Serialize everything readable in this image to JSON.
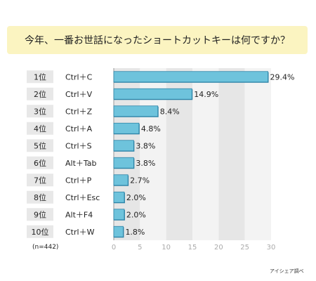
{
  "title": "今年、一番お世話になったショートカットキーは何ですか？",
  "sample_note": "(n=442)",
  "source": "アイシェア調べ",
  "colors": {
    "bar_fill": "#6ec3dc",
    "bar_edge": "#2e84a8",
    "rank_bg": "#e8e8e8",
    "band_dark": "#e6e6e6",
    "band_light": "#f3f3f3",
    "title_bg": "#fbf4c1"
  },
  "chart_data": {
    "type": "bar",
    "orientation": "horizontal",
    "ranks": [
      "1位",
      "2位",
      "3位",
      "4位",
      "5位",
      "6位",
      "7位",
      "8位",
      "9位",
      "10位"
    ],
    "categories": [
      "Ctrl＋C",
      "Ctrl＋V",
      "Ctrl＋Z",
      "Ctrl＋A",
      "Ctrl＋S",
      "Alt＋Tab",
      "Ctrl＋P",
      "Ctrl＋Esc",
      "Alt＋F4",
      "Ctrl＋W"
    ],
    "values": [
      29.4,
      14.9,
      8.4,
      4.8,
      3.8,
      3.8,
      2.7,
      2.0,
      2.0,
      1.8
    ],
    "value_labels": [
      "29.4%",
      "14.9%",
      "8.4%",
      "4.8%",
      "3.8%",
      "3.8%",
      "2.7%",
      "2.0%",
      "2.0%",
      "1.8%"
    ],
    "xlim": [
      0,
      30
    ],
    "xticks": [
      "0",
      "5",
      "10",
      "15",
      "20",
      "25",
      "30"
    ],
    "grid": "alternating vertical bands",
    "legend": "none"
  }
}
